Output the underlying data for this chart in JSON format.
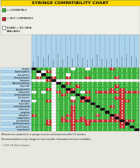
{
  "title": "SYRINGE COMPATIBILITY CHART",
  "title_bg": "#FFD700",
  "title_color": "#000000",
  "drugs_rows": [
    "atropine",
    "buprenorphine",
    "butorphanol",
    "chlorpromazine",
    "diazepam",
    "diphenhydramine",
    "droperidol",
    "glycopyrrolate",
    "haloperidol",
    "hydromorphone",
    "hydroxyzine",
    "ketorolac",
    "meperidine",
    "metoclopramide",
    "midazolam",
    "morphine",
    "nalbuphine",
    "ondansetron",
    "pentobarbital",
    "prochlorperazine",
    "promethazine",
    "scopolamine"
  ],
  "drugs_cols": [
    "atropine",
    "buprenorphine",
    "butorphanol",
    "chlorpromazine",
    "diazepam",
    "diphenhydramine",
    "droperidol",
    "glycopyrrolate",
    "haloperidol",
    "hydromorphone",
    "hydroxyzine",
    "ketorolac",
    "meperidine",
    "metoclopramide",
    "midazolam",
    "morphine",
    "nalbuphine",
    "ondansetron",
    "pentobarbital",
    "prochlorperazine",
    "promethazine",
    "scopolamine"
  ],
  "compatibility": [
    [
      "K",
      "C",
      "C",
      "C",
      "B",
      "C",
      "C",
      "C",
      "B",
      "C",
      "C",
      "B",
      "C",
      "C",
      "C",
      "C",
      "N",
      "C",
      "C",
      "C",
      "C",
      "C"
    ],
    [
      "C",
      "K",
      "B",
      "N",
      "B",
      "C",
      "C",
      "C",
      "C",
      "C",
      "C",
      "C",
      "C",
      "C",
      "C",
      "C",
      "C",
      "C",
      "C",
      "C",
      "C",
      "C"
    ],
    [
      "C",
      "B",
      "K",
      "C",
      "B",
      "C",
      "C",
      "B",
      "C",
      "C",
      "C",
      "C",
      "C",
      "C",
      "C",
      "C",
      "C",
      "C",
      "C",
      "C",
      "C",
      "C"
    ],
    [
      "C",
      "N",
      "C",
      "K",
      "N",
      "C",
      "C",
      "N",
      "C",
      "C",
      "C",
      "N",
      "C",
      "C",
      "C",
      "C",
      "C",
      "N",
      "C",
      "C",
      "C",
      "C"
    ],
    [
      "B",
      "B",
      "B",
      "N",
      "K",
      "B",
      "B",
      "B",
      "B",
      "B",
      "B",
      "B",
      "B",
      "B",
      "B",
      "B",
      "B",
      "B",
      "B",
      "B",
      "B",
      "B"
    ],
    [
      "C",
      "C",
      "C",
      "C",
      "B",
      "K",
      "C",
      "N",
      "C",
      "C",
      "C",
      "C",
      "C",
      "C",
      "C",
      "C",
      "C",
      "C",
      "C",
      "C",
      "C",
      "C"
    ],
    [
      "C",
      "C",
      "C",
      "C",
      "B",
      "C",
      "K",
      "C",
      "C",
      "N",
      "C",
      "C",
      "C",
      "C",
      "C",
      "C",
      "C",
      "N",
      "C",
      "C",
      "C",
      "C"
    ],
    [
      "C",
      "C",
      "C",
      "N",
      "B",
      "C",
      "C",
      "K",
      "N",
      "C",
      "C",
      "C",
      "C",
      "C",
      "C",
      "C",
      "N",
      "C",
      "N",
      "C",
      "C",
      "C"
    ],
    [
      "B",
      "C",
      "B",
      "C",
      "B",
      "N",
      "C",
      "N",
      "K",
      "C",
      "B",
      "N",
      "C",
      "N",
      "N",
      "N",
      "N",
      "N",
      "N",
      "N",
      "N",
      "N"
    ],
    [
      "C",
      "C",
      "C",
      "C",
      "B",
      "C",
      "N",
      "C",
      "C",
      "K",
      "C",
      "C",
      "C",
      "C",
      "C",
      "C",
      "C",
      "C",
      "N",
      "C",
      "C",
      "C"
    ],
    [
      "C",
      "C",
      "C",
      "C",
      "B",
      "C",
      "C",
      "C",
      "B",
      "C",
      "K",
      "N",
      "C",
      "C",
      "C",
      "C",
      "C",
      "N",
      "N",
      "C",
      "C",
      "C"
    ],
    [
      "B",
      "C",
      "C",
      "N",
      "B",
      "C",
      "C",
      "C",
      "N",
      "C",
      "N",
      "K",
      "C",
      "C",
      "C",
      "C",
      "C",
      "C",
      "N",
      "N",
      "C",
      "C"
    ],
    [
      "C",
      "C",
      "C",
      "C",
      "B",
      "C",
      "C",
      "C",
      "C",
      "C",
      "C",
      "C",
      "K",
      "C",
      "C",
      "C",
      "C",
      "C",
      "N",
      "C",
      "C",
      "C"
    ],
    [
      "C",
      "C",
      "C",
      "C",
      "B",
      "C",
      "C",
      "C",
      "N",
      "C",
      "C",
      "C",
      "C",
      "K",
      "C",
      "C",
      "N",
      "C",
      "N",
      "C",
      "C",
      "C"
    ],
    [
      "C",
      "C",
      "C",
      "C",
      "B",
      "C",
      "C",
      "C",
      "N",
      "C",
      "C",
      "C",
      "C",
      "C",
      "K",
      "C",
      "C",
      "C",
      "N",
      "C",
      "C",
      "C"
    ],
    [
      "C",
      "C",
      "C",
      "C",
      "B",
      "C",
      "C",
      "C",
      "N",
      "C",
      "C",
      "C",
      "C",
      "C",
      "C",
      "K",
      "C",
      "C",
      "N",
      "C",
      "C",
      "C"
    ],
    [
      "N",
      "C",
      "C",
      "C",
      "B",
      "C",
      "C",
      "N",
      "N",
      "C",
      "C",
      "C",
      "C",
      "N",
      "C",
      "C",
      "K",
      "N",
      "N",
      "C",
      "C",
      "C"
    ],
    [
      "C",
      "C",
      "C",
      "C",
      "B",
      "C",
      "N",
      "C",
      "N",
      "C",
      "N",
      "C",
      "C",
      "C",
      "C",
      "C",
      "N",
      "K",
      "N",
      "C",
      "C",
      "C"
    ],
    [
      "C",
      "C",
      "C",
      "N",
      "B",
      "C",
      "N",
      "N",
      "N",
      "N",
      "N",
      "N",
      "N",
      "N",
      "N",
      "N",
      "N",
      "N",
      "K",
      "N",
      "N",
      "C"
    ],
    [
      "C",
      "C",
      "C",
      "N",
      "B",
      "C",
      "C",
      "C",
      "N",
      "C",
      "C",
      "N",
      "C",
      "C",
      "C",
      "C",
      "C",
      "C",
      "N",
      "K",
      "C",
      "C"
    ],
    [
      "C",
      "C",
      "C",
      "C",
      "B",
      "C",
      "C",
      "C",
      "N",
      "C",
      "C",
      "C",
      "C",
      "C",
      "C",
      "C",
      "C",
      "C",
      "N",
      "C",
      "K",
      "C"
    ],
    [
      "C",
      "C",
      "C",
      "C",
      "B",
      "C",
      "C",
      "C",
      "N",
      "C",
      "C",
      "C",
      "C",
      "C",
      "C",
      "C",
      "C",
      "C",
      "C",
      "C",
      "C",
      "K"
    ]
  ],
  "color_C": "#2db82d",
  "color_N": "#cc2222",
  "color_K": "#111111",
  "color_B": "#ffffff",
  "color_empty": "#dddddd",
  "header_bg": "#aad4ee",
  "row_bg_even": "#c8e8f8",
  "row_bg_odd": "#aad4ee",
  "fig_bg": "#e8e8e0",
  "grid_bg": "#f0f0e8",
  "note": "Medications combined in a syringe must be administered within 15 minutes.\nRecommendations may change as new scientific information becomes available.",
  "footer": "© 2013, F.A. Davis Company",
  "legend": [
    {
      "color": "#2db82d",
      "text": "= COMPATIBLE"
    },
    {
      "color": "#cc2222",
      "text": "= NOT COMPATIBLE"
    },
    {
      "color": "#ffffff",
      "text": "BLANK = NO DATA\nAVAILABLE"
    }
  ]
}
